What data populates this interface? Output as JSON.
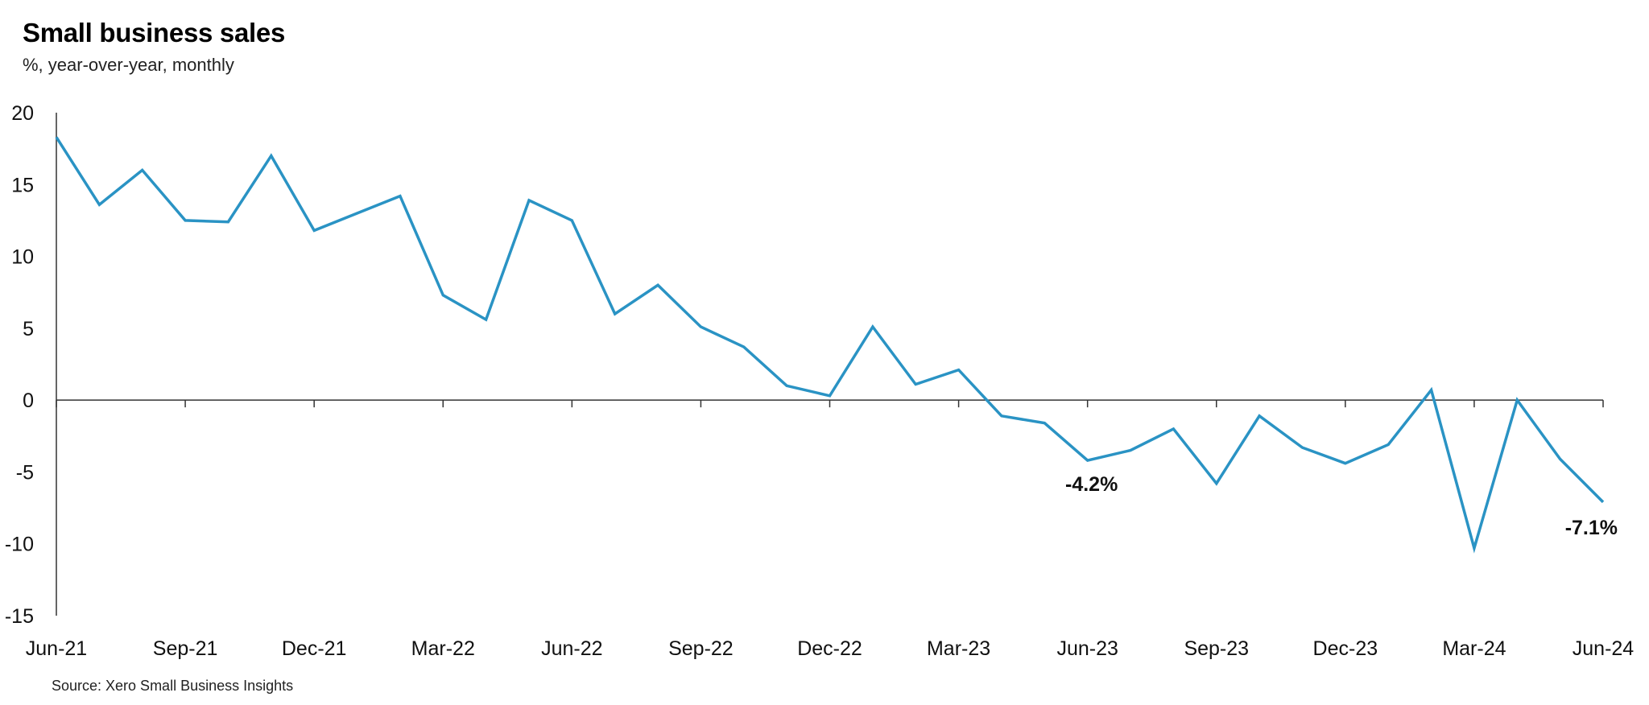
{
  "title": "Small business sales",
  "subtitle": "%, year-over-year, monthly",
  "source": "Source: Xero Small Business Insights",
  "colors": {
    "line": "#2a93c4",
    "axis": "#333333"
  },
  "chart_data": {
    "type": "line",
    "title": "Small business sales",
    "subtitle": "%, year-over-year, monthly",
    "ylim": [
      -15,
      20
    ],
    "yticks": [
      20,
      15,
      10,
      5,
      0,
      -5,
      -10,
      -15
    ],
    "x_tick_labels": [
      "Jun-21",
      "Sep-21",
      "Dec-21",
      "Mar-22",
      "Jun-22",
      "Sep-22",
      "Dec-22",
      "Mar-23",
      "Jun-23",
      "Sep-23",
      "Dec-23",
      "Mar-24",
      "Jun-24"
    ],
    "x": [
      "Jun-21",
      "Jul-21",
      "Aug-21",
      "Sep-21",
      "Oct-21",
      "Nov-21",
      "Dec-21",
      "Jan-22",
      "Feb-22",
      "Mar-22",
      "Apr-22",
      "May-22",
      "Jun-22",
      "Jul-22",
      "Aug-22",
      "Sep-22",
      "Oct-22",
      "Nov-22",
      "Dec-22",
      "Jan-23",
      "Feb-23",
      "Mar-23",
      "Apr-23",
      "May-23",
      "Jun-23",
      "Jul-23",
      "Aug-23",
      "Sep-23",
      "Oct-23",
      "Nov-23",
      "Dec-23",
      "Jan-24",
      "Feb-24",
      "Mar-24",
      "Apr-24",
      "May-24",
      "Jun-24"
    ],
    "series": [
      {
        "values": [
          18.3,
          13.6,
          16.0,
          12.5,
          12.4,
          17.0,
          11.8,
          13.0,
          14.2,
          7.3,
          5.6,
          13.9,
          12.5,
          6.0,
          8.0,
          5.1,
          3.7,
          1.0,
          0.3,
          5.1,
          1.1,
          2.1,
          -1.1,
          -1.6,
          -4.2,
          -3.5,
          -2.0,
          -5.8,
          -1.1,
          -3.3,
          -4.4,
          -3.1,
          0.7,
          -10.3,
          0.0,
          -4.1,
          -7.1
        ]
      }
    ],
    "annotations": [
      {
        "x": "Jun-23",
        "value": -4.2,
        "label": "-4.2%"
      },
      {
        "x": "Jun-24",
        "value": -7.1,
        "label": "-7.1%"
      }
    ],
    "grid": false,
    "legend": "none"
  }
}
